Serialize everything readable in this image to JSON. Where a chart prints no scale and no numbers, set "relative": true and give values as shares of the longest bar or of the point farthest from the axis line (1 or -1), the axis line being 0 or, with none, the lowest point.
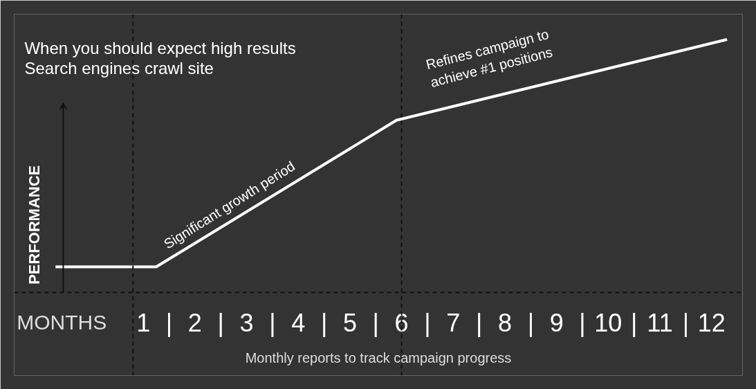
{
  "chart_data": {
    "type": "line",
    "relative": true,
    "title": "When you should expect high results",
    "subtitle": "Search engines crawl site",
    "xlabel": "MONTHS",
    "ylabel": "PERFORMANCE",
    "x": [
      -0.7,
      1.25,
      5.9,
      12.3
    ],
    "series": [
      {
        "color": "#ffffff",
        "values": [
          0.1,
          0.1,
          0.68,
          1.0
        ]
      }
    ],
    "xlim": [
      -1.5,
      12.6
    ],
    "xticks": [
      1,
      {
        "value": 1.5,
        "label": "|"
      },
      2,
      {
        "value": 2.5,
        "label": "|"
      },
      3,
      {
        "value": 3.5,
        "label": "|"
      },
      4,
      {
        "value": 4.5,
        "label": "|"
      },
      5,
      {
        "value": 5.5,
        "label": "|"
      },
      6,
      {
        "value": 6.5,
        "label": "|"
      },
      7,
      {
        "value": 7.5,
        "label": "|"
      },
      8,
      {
        "value": 8.5,
        "label": "|"
      },
      9,
      {
        "value": 9.5,
        "label": "|"
      },
      10,
      {
        "value": 10.5,
        "label": "|"
      },
      11,
      {
        "value": 11.5,
        "label": "|"
      },
      12
    ],
    "ref_lines": [
      {
        "axis": "x",
        "value": 0.8,
        "color": "#111111",
        "line_style": "dashed"
      },
      {
        "axis": "x",
        "value": 6,
        "color": "#111111",
        "line_style": "dashed"
      }
    ],
    "annotations": [
      "Significant growth period",
      "Refines campaign to achieve #1 positions",
      "Monthly reports to track campaign progress"
    ],
    "grid": false,
    "marker": "none",
    "line_style": "solid"
  }
}
